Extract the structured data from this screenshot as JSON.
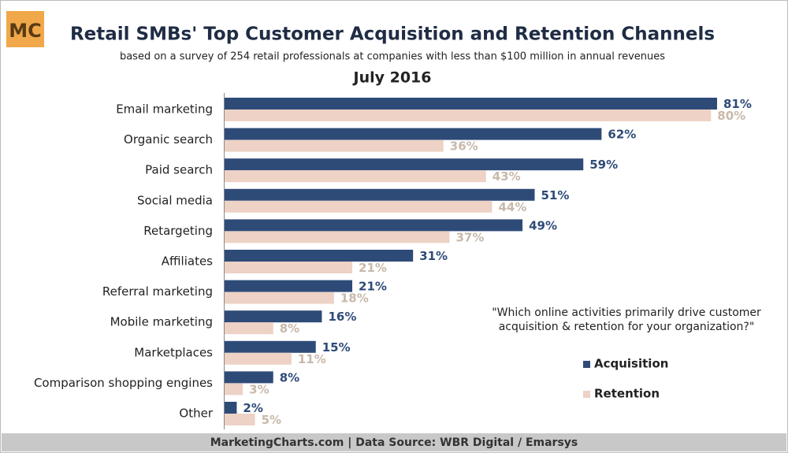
{
  "chart_data": {
    "type": "bar",
    "orientation": "horizontal",
    "logo": "MC",
    "title": "Retail SMBs' Top Customer Acquisition and Retention Channels",
    "subtitle": "based on a survey of 254 retail professionals at companies with less than $100 million in annual revenues",
    "date": "July 2016",
    "note": [
      "\"Which online activities primarily drive customer",
      "acquisition & retention for your organization?\""
    ],
    "source": "MarketingCharts.com | Data Source: WBR Digital / Emarsys",
    "categories": [
      "Email marketing",
      "Organic search",
      "Paid search",
      "Social media",
      "Retargeting",
      "Affiliates",
      "Referral marketing",
      "Mobile marketing",
      "Marketplaces",
      "Comparison shopping engines",
      "Other"
    ],
    "series": [
      {
        "name": "Acquisition",
        "color": "#2e4b78",
        "label_color": "#2e4b78",
        "values": [
          81,
          62,
          59,
          51,
          49,
          31,
          21,
          16,
          15,
          8,
          2
        ],
        "value_labels": [
          "81%",
          "62%",
          "59%",
          "51%",
          "49%",
          "31%",
          "21%",
          "16%",
          "15%",
          "8%",
          "2%"
        ]
      },
      {
        "name": "Retention",
        "color": "#edd2c5",
        "label_color": "#c8b9aa",
        "values": [
          80,
          36,
          43,
          44,
          37,
          21,
          18,
          8,
          11,
          3,
          5
        ],
        "value_labels": [
          "80%",
          "36%",
          "43%",
          "44%",
          "37%",
          "21%",
          "18%",
          "8%",
          "11%",
          "3%",
          "5%"
        ]
      }
    ]
  }
}
